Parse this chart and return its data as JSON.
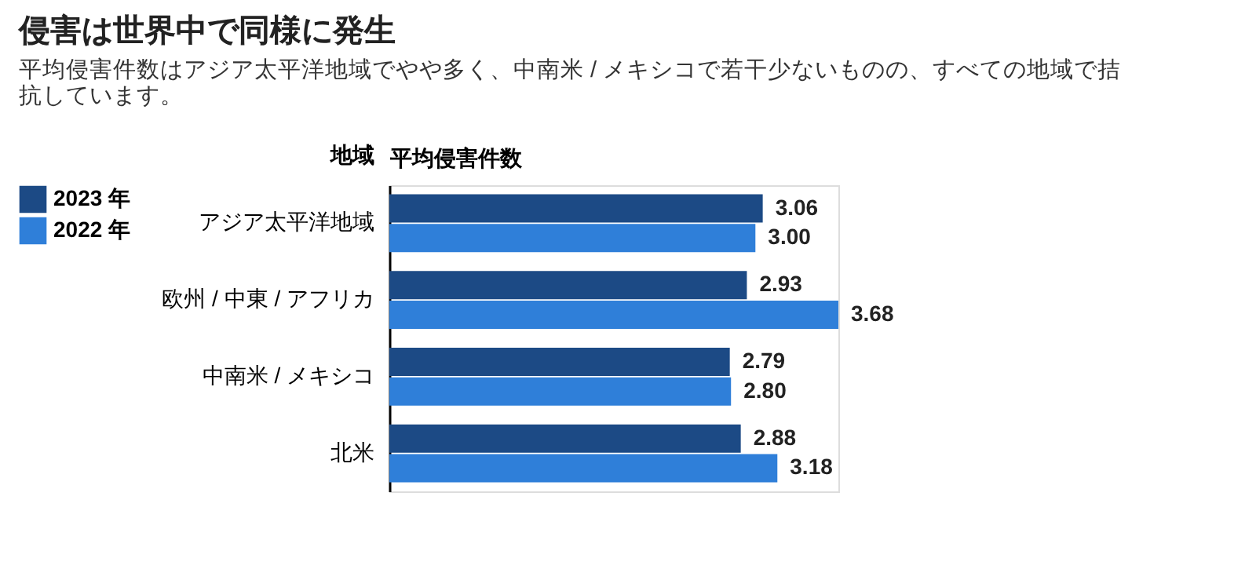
{
  "chart_data": {
    "type": "bar",
    "orientation": "horizontal",
    "title": "侵害は世界中で同様に発生",
    "subtitle": "平均侵害件数はアジア太平洋地域でやや多く、中南米 / メキシコで若干少ないものの、すべての地域で拮抗しています。",
    "xlabel": "平均侵害件数",
    "ylabel": "地域",
    "categories": [
      "アジア太平洋地域",
      "欧州 / 中東 / アフリカ",
      "中南米 / メキシコ",
      "北米"
    ],
    "series": [
      {
        "name": "2023 年",
        "color": "#1c4a85",
        "values": [
          3.06,
          2.93,
          2.79,
          2.88
        ],
        "value_labels": [
          "3.06",
          "2.93",
          "2.79",
          "2.88"
        ]
      },
      {
        "name": "2022 年",
        "color": "#2f7fd9",
        "values": [
          3.0,
          3.68,
          2.8,
          3.18
        ],
        "value_labels": [
          "3.00",
          "3.68",
          "2.80",
          "3.18"
        ]
      }
    ],
    "legend": "left",
    "grid": false
  }
}
